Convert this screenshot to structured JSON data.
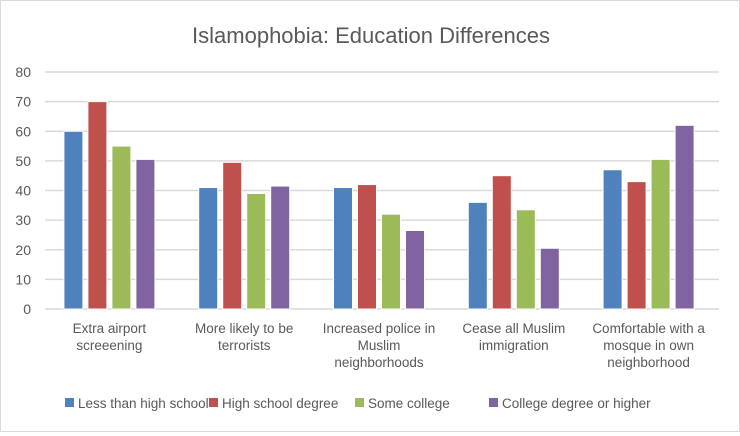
{
  "chart_data": {
    "type": "bar",
    "title": "Islamophobia: Education Differences",
    "xlabel": "",
    "ylabel": "",
    "ylim": [
      0,
      80
    ],
    "yticks": [
      0,
      10,
      20,
      30,
      40,
      50,
      60,
      70,
      80
    ],
    "grid": true,
    "legend_position": "bottom",
    "categories": [
      [
        "Extra airport",
        "screeening"
      ],
      [
        "More likely to be",
        "terrorists"
      ],
      [
        "Increased police in",
        "Muslim",
        "neighborhoods"
      ],
      [
        "Cease all Muslim",
        "immigration"
      ],
      [
        "Comfortable with a",
        "mosque in own",
        "neighborhood"
      ]
    ],
    "series": [
      {
        "name": "Less than high school",
        "color": "#4f81bd",
        "values": [
          60,
          41,
          41,
          36,
          47
        ]
      },
      {
        "name": "High school degree",
        "color": "#c0504d",
        "values": [
          70,
          49.5,
          42,
          45,
          43
        ]
      },
      {
        "name": "Some college",
        "color": "#9bbb59",
        "values": [
          55,
          39,
          32,
          33.5,
          50.5
        ]
      },
      {
        "name": "College degree or higher",
        "color": "#8064a2",
        "values": [
          50.5,
          41.5,
          26.5,
          20.5,
          62
        ]
      }
    ]
  }
}
